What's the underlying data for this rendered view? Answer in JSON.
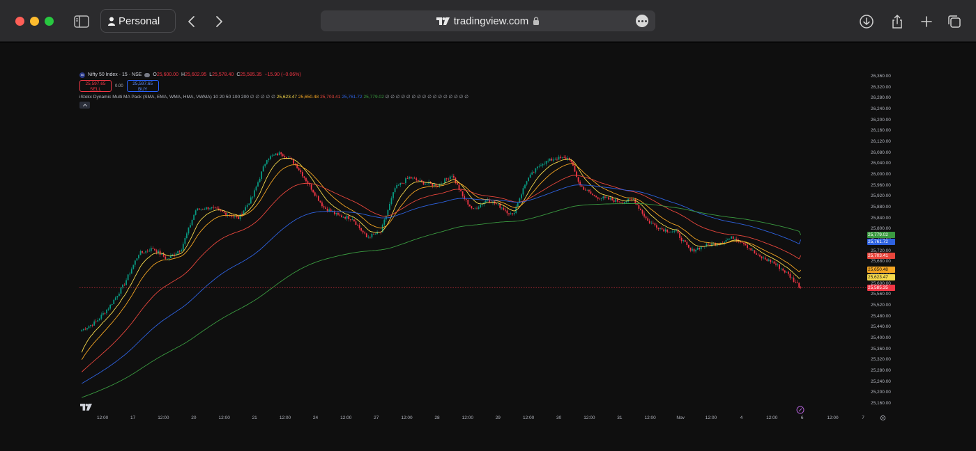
{
  "browser": {
    "profile_label": "Personal",
    "url": "tradingview.com",
    "icons": [
      "sidebar-icon",
      "person-icon",
      "back-icon",
      "forward-icon",
      "tradingview-logo-icon",
      "lock-icon",
      "more-icon",
      "download-icon",
      "share-icon",
      "new-tab-icon",
      "tabs-overview-icon"
    ]
  },
  "chart": {
    "symbol": "Nifty 50 Index · 15 · NSE",
    "ohlc": {
      "open_label": "O",
      "open": "25,600.00",
      "high_label": "H",
      "high": "25,602.95",
      "low_label": "L",
      "low": "25,578.40",
      "close_label": "C",
      "close": "25,585.35",
      "change": "−15.90 (−0.06%)"
    },
    "sell": {
      "price": "25,597.65",
      "label": "SELL"
    },
    "spread": "0.00",
    "buy": {
      "price": "25,597.65",
      "label": "BUY"
    },
    "indicator": {
      "name": "iStokx Dynamic Multi MA Pack (SMA, EMA, WMA, HMA, VWMA) 10 20 50 100 200",
      "placeholders": "∅ ∅ ∅ ∅ ∅",
      "values": [
        "25,623.47",
        "25,650.48",
        "25,703.41",
        "25,761.72",
        "25,779.02"
      ],
      "trailing": "∅ ∅ ∅ ∅ ∅ ∅ ∅ ∅ ∅ ∅ ∅ ∅ ∅ ∅ ∅ ∅"
    },
    "colors": {
      "up": "#089981",
      "down": "#f23645",
      "ma10": "#f7d94c",
      "ma20": "#f5a623",
      "ma50": "#e8463c",
      "ma100": "#2e62e0",
      "ma200": "#3a9a40",
      "background": "#0f0f0f"
    },
    "price_axis": [
      "26,360.00",
      "26,320.00",
      "26,280.00",
      "26,240.00",
      "26,200.00",
      "26,160.00",
      "26,120.00",
      "26,080.00",
      "26,040.00",
      "26,000.00",
      "25,960.00",
      "25,920.00",
      "25,880.00",
      "25,840.00",
      "25,800.00",
      "25,760.00",
      "25,720.00",
      "25,680.00",
      "25,640.00",
      "25,600.00",
      "25,560.00",
      "25,520.00",
      "25,480.00",
      "25,440.00",
      "25,400.00",
      "25,360.00",
      "25,320.00",
      "25,280.00",
      "25,240.00",
      "25,200.00",
      "25,160.00"
    ],
    "price_tags": [
      {
        "value": "25,779.02",
        "color": "#3a9a40"
      },
      {
        "value": "25,761.72",
        "color": "#2e62e0"
      },
      {
        "value": "25,703.41",
        "color": "#e8463c"
      },
      {
        "value": "25,650.48",
        "color": "#f5a623"
      },
      {
        "value": "25,623.47",
        "color": "#f7d94c"
      },
      {
        "value": "25,585.35",
        "color": "#f23645"
      }
    ],
    "time_axis": [
      "12:00",
      "17",
      "12:00",
      "20",
      "12:00",
      "21",
      "12:00",
      "24",
      "12:00",
      "27",
      "12:00",
      "28",
      "12:00",
      "29",
      "12:00",
      "30",
      "12:00",
      "31",
      "12:00",
      "Nov",
      "12:00",
      "4",
      "12:00",
      "6",
      "12:00",
      "7"
    ]
  },
  "chart_data": {
    "type": "candlestick",
    "ylim": [
      25160,
      26370
    ],
    "last_price": 25585.35,
    "sessions": [
      "16",
      "17",
      "20",
      "21",
      "24",
      "27",
      "28",
      "29",
      "30",
      "31",
      "Nov",
      "4",
      "6"
    ],
    "close_anchors": [
      {
        "i": 0,
        "c": 25430
      },
      {
        "i": 8,
        "c": 25460
      },
      {
        "i": 16,
        "c": 25520
      },
      {
        "i": 24,
        "c": 25600
      },
      {
        "i": 32,
        "c": 25710
      },
      {
        "i": 40,
        "c": 25730
      },
      {
        "i": 48,
        "c": 25690
      },
      {
        "i": 56,
        "c": 25730
      },
      {
        "i": 64,
        "c": 25870
      },
      {
        "i": 72,
        "c": 25880
      },
      {
        "i": 80,
        "c": 25860
      },
      {
        "i": 88,
        "c": 25840
      },
      {
        "i": 96,
        "c": 25920
      },
      {
        "i": 104,
        "c": 26060
      },
      {
        "i": 112,
        "c": 26080
      },
      {
        "i": 120,
        "c": 26040
      },
      {
        "i": 128,
        "c": 25960
      },
      {
        "i": 136,
        "c": 25880
      },
      {
        "i": 144,
        "c": 25850
      },
      {
        "i": 152,
        "c": 25840
      },
      {
        "i": 160,
        "c": 25770
      },
      {
        "i": 168,
        "c": 25790
      },
      {
        "i": 176,
        "c": 25950
      },
      {
        "i": 184,
        "c": 25990
      },
      {
        "i": 192,
        "c": 25970
      },
      {
        "i": 200,
        "c": 25960
      },
      {
        "i": 208,
        "c": 26000
      },
      {
        "i": 214,
        "c": 25920
      },
      {
        "i": 220,
        "c": 25870
      },
      {
        "i": 228,
        "c": 25910
      },
      {
        "i": 236,
        "c": 25880
      },
      {
        "i": 242,
        "c": 25850
      },
      {
        "i": 250,
        "c": 25980
      },
      {
        "i": 258,
        "c": 26040
      },
      {
        "i": 266,
        "c": 26060
      },
      {
        "i": 274,
        "c": 26060
      },
      {
        "i": 280,
        "c": 25960
      },
      {
        "i": 288,
        "c": 25920
      },
      {
        "i": 296,
        "c": 25910
      },
      {
        "i": 304,
        "c": 25900
      },
      {
        "i": 310,
        "c": 25910
      },
      {
        "i": 318,
        "c": 25830
      },
      {
        "i": 326,
        "c": 25800
      },
      {
        "i": 334,
        "c": 25790
      },
      {
        "i": 342,
        "c": 25720
      },
      {
        "i": 350,
        "c": 25740
      },
      {
        "i": 358,
        "c": 25750
      },
      {
        "i": 366,
        "c": 25770
      },
      {
        "i": 372,
        "c": 25750
      },
      {
        "i": 380,
        "c": 25700
      },
      {
        "i": 388,
        "c": 25680
      },
      {
        "i": 396,
        "c": 25640
      },
      {
        "i": 404,
        "c": 25585
      }
    ],
    "moving_averages": [
      {
        "name": "MA 10",
        "last": 25623.47
      },
      {
        "name": "MA 20",
        "last": 25650.48
      },
      {
        "name": "MA 50",
        "last": 25703.41
      },
      {
        "name": "MA 100",
        "last": 25761.72
      },
      {
        "name": "MA 200",
        "last": 25779.02
      }
    ]
  }
}
